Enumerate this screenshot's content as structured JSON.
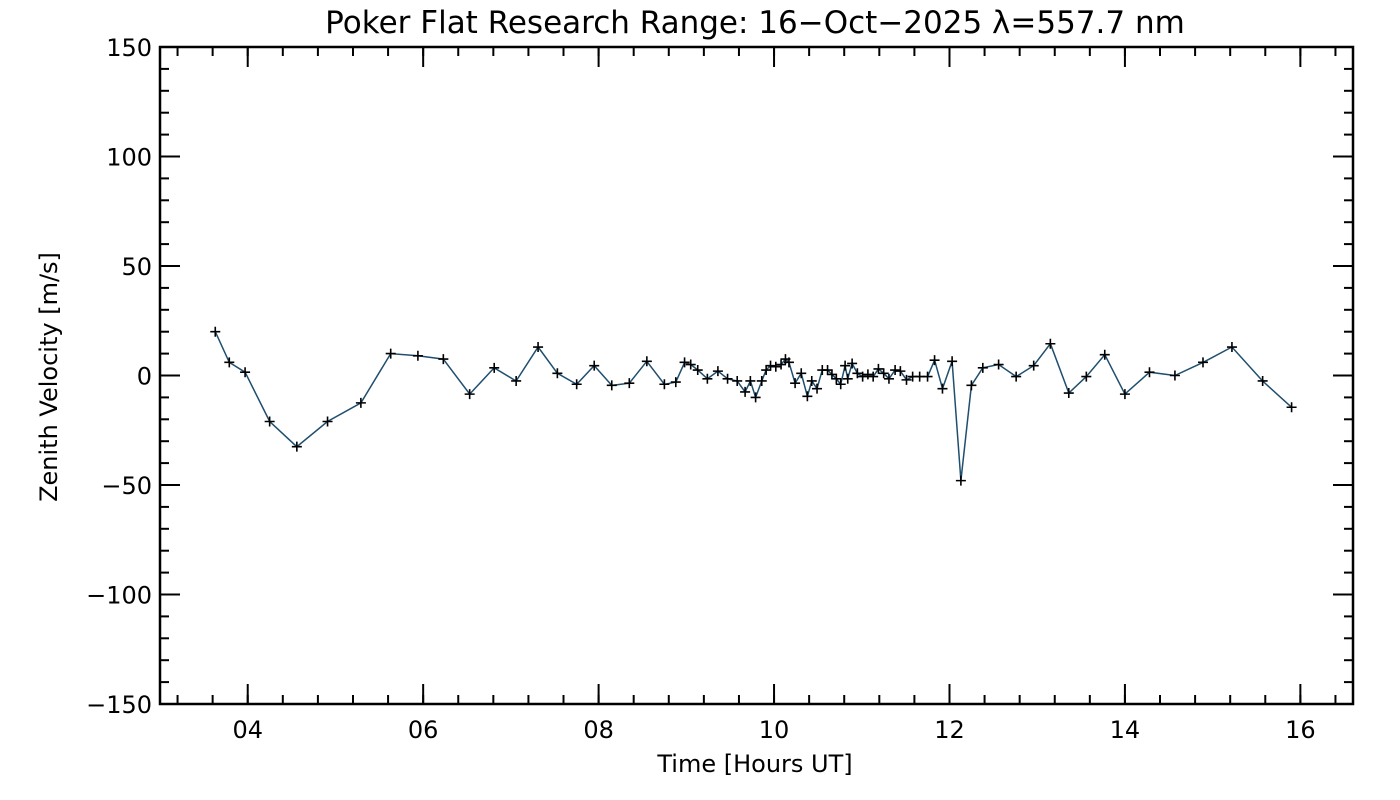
{
  "chart_data": {
    "type": "line",
    "title": "Poker Flat Research Range: 16−Oct−2025 λ=557.7 nm",
    "xlabel": "Time [Hours UT]",
    "ylabel": "Zenith Velocity [m/s]",
    "xlim": [
      3.0,
      16.6
    ],
    "ylim": [
      -150,
      150
    ],
    "x_ticks": [
      {
        "value": 4,
        "label": "04"
      },
      {
        "value": 6,
        "label": "06"
      },
      {
        "value": 8,
        "label": "08"
      },
      {
        "value": 10,
        "label": "10"
      },
      {
        "value": 12,
        "label": "12"
      },
      {
        "value": 14,
        "label": "14"
      },
      {
        "value": 16,
        "label": "16"
      }
    ],
    "y_ticks": [
      {
        "value": 150,
        "label": "150"
      },
      {
        "value": 100,
        "label": "100"
      },
      {
        "value": 50,
        "label": "50"
      },
      {
        "value": 0,
        "label": "0"
      },
      {
        "value": -50,
        "label": "−50"
      },
      {
        "value": -100,
        "label": "−100"
      },
      {
        "value": -150,
        "label": "−150"
      }
    ],
    "x_minor_step": 0.4,
    "y_minor_step": 10,
    "line_color": "#1f4e6e",
    "marker": "+",
    "series": [
      {
        "name": "Zenith Velocity",
        "points": [
          [
            3.63,
            20
          ],
          [
            3.79,
            6
          ],
          [
            3.97,
            1.5
          ],
          [
            4.25,
            -21
          ],
          [
            4.56,
            -32.5
          ],
          [
            4.91,
            -21
          ],
          [
            5.29,
            -12.5
          ],
          [
            5.63,
            10
          ],
          [
            5.94,
            9
          ],
          [
            6.23,
            7.5
          ],
          [
            6.53,
            -8.5
          ],
          [
            6.81,
            3.5
          ],
          [
            7.06,
            -2.5
          ],
          [
            7.31,
            13
          ],
          [
            7.53,
            1
          ],
          [
            7.75,
            -4
          ],
          [
            7.95,
            4.5
          ],
          [
            8.15,
            -4.5
          ],
          [
            8.35,
            -3.5
          ],
          [
            8.55,
            6.5
          ],
          [
            8.75,
            -4
          ],
          [
            8.88,
            -3
          ],
          [
            8.98,
            6
          ],
          [
            9.05,
            5
          ],
          [
            9.13,
            2.5
          ],
          [
            9.24,
            -1.5
          ],
          [
            9.36,
            2
          ],
          [
            9.47,
            -1.5
          ],
          [
            9.58,
            -2.5
          ],
          [
            9.67,
            -7.5
          ],
          [
            9.73,
            -2.5
          ],
          [
            9.79,
            -10
          ],
          [
            9.86,
            -2.5
          ],
          [
            9.91,
            2.5
          ],
          [
            9.96,
            4.5
          ],
          [
            10.02,
            4
          ],
          [
            10.08,
            5
          ],
          [
            10.13,
            7.5
          ],
          [
            10.17,
            6
          ],
          [
            10.24,
            -3.5
          ],
          [
            10.31,
            1
          ],
          [
            10.38,
            -9.5
          ],
          [
            10.43,
            -2.5
          ],
          [
            10.49,
            -6
          ],
          [
            10.55,
            2.5
          ],
          [
            10.61,
            2.5
          ],
          [
            10.66,
            0.5
          ],
          [
            10.71,
            -1.5
          ],
          [
            10.76,
            -4
          ],
          [
            10.81,
            4.5
          ],
          [
            10.84,
            -1.5
          ],
          [
            10.89,
            5.5
          ],
          [
            10.95,
            1
          ],
          [
            11.01,
            -0.5
          ],
          [
            11.07,
            0.5
          ],
          [
            11.13,
            -0.5
          ],
          [
            11.19,
            3
          ],
          [
            11.25,
            1
          ],
          [
            11.31,
            -1.5
          ],
          [
            11.38,
            2.5
          ],
          [
            11.44,
            2
          ],
          [
            11.51,
            -2
          ],
          [
            11.58,
            -0.5
          ],
          [
            11.66,
            -0.5
          ],
          [
            11.75,
            -0.5
          ],
          [
            11.83,
            7
          ],
          [
            11.92,
            -6
          ],
          [
            12.03,
            6.5
          ],
          [
            12.13,
            -48
          ],
          [
            12.25,
            -4.5
          ],
          [
            12.38,
            3.5
          ],
          [
            12.56,
            5
          ],
          [
            12.76,
            -0.5
          ],
          [
            12.96,
            4.5
          ],
          [
            13.15,
            14.5
          ],
          [
            13.36,
            -8
          ],
          [
            13.56,
            -0.5
          ],
          [
            13.77,
            9.5
          ],
          [
            14.0,
            -8.5
          ],
          [
            14.28,
            1.5
          ],
          [
            14.57,
            0
          ],
          [
            14.89,
            6
          ],
          [
            15.22,
            13
          ],
          [
            15.57,
            -2.5
          ],
          [
            15.9,
            -14.5
          ]
        ]
      }
    ]
  }
}
